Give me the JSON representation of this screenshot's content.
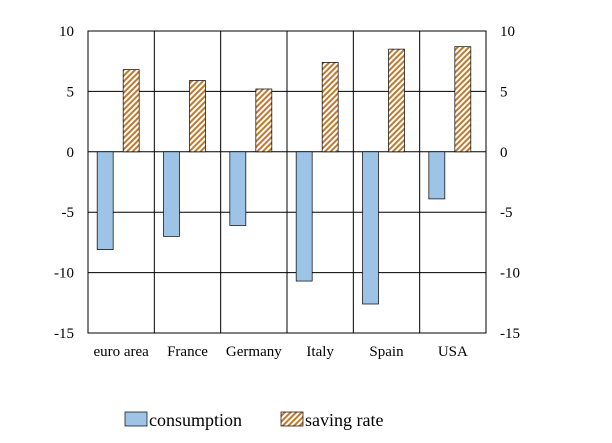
{
  "chart_data": {
    "type": "bar",
    "categories": [
      "euro area",
      "France",
      "Germany",
      "Italy",
      "Spain",
      "USA"
    ],
    "series": [
      {
        "name": "consumption",
        "values": [
          -8.1,
          -7.0,
          -6.1,
          -10.7,
          -12.6,
          -3.9
        ],
        "color": "#9dc3e6",
        "pattern": "solid"
      },
      {
        "name": "saving rate",
        "values": [
          6.8,
          5.9,
          5.2,
          7.4,
          8.5,
          8.7
        ],
        "color": "#c0792c",
        "pattern": "diagonal-hatch"
      }
    ],
    "ylim": [
      -15,
      10
    ],
    "yticks": [
      10,
      5,
      0,
      -5,
      -10,
      -15
    ],
    "secondary_axis": true,
    "grid": true,
    "legend": "bottom"
  }
}
